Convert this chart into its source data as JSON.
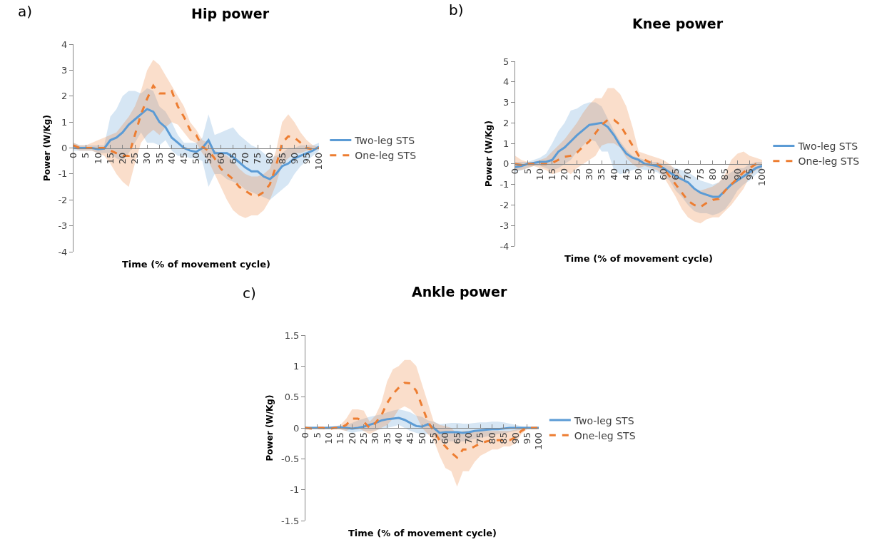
{
  "chart_data": [
    {
      "type": "line",
      "title": "Hip power",
      "xlabel": "Time (% of movement cycle)",
      "ylabel": "Power (W/Kg)",
      "annotations": [
        "a)"
      ],
      "grid": false,
      "legend": "right",
      "xlim": [
        0,
        100
      ],
      "xticks": [
        0,
        5,
        10,
        15,
        20,
        25,
        30,
        35,
        40,
        45,
        50,
        55,
        60,
        65,
        70,
        75,
        80,
        85,
        90,
        95,
        100
      ],
      "ylim": [
        -4,
        4
      ],
      "yticks": [
        -4,
        -3,
        -2,
        -1,
        0,
        1,
        2,
        3,
        4
      ],
      "x": [
        0,
        2.5,
        5,
        7.5,
        10,
        12.5,
        15,
        17.5,
        20,
        22.5,
        25,
        27.5,
        30,
        32.5,
        35,
        37.5,
        40,
        42.5,
        45,
        47.5,
        50,
        52.5,
        55,
        57.5,
        60,
        62.5,
        65,
        67.5,
        70,
        72.5,
        75,
        77.5,
        80,
        82.5,
        85,
        87.5,
        90,
        92.5,
        95,
        97.5,
        100
      ],
      "series": [
        {
          "name": "Two-leg STS",
          "color": "#5b9bd5",
          "line_style": "solid",
          "values": [
            0.05,
            0,
            0,
            0,
            -0.05,
            -0.02,
            0.3,
            0.4,
            0.6,
            0.9,
            1.1,
            1.3,
            1.5,
            1.4,
            1.0,
            0.8,
            0.4,
            0.2,
            0,
            -0.1,
            -0.15,
            0,
            0.3,
            -0.2,
            -0.2,
            -0.2,
            -0.35,
            -0.55,
            -0.75,
            -0.9,
            -0.9,
            -1.1,
            -1.2,
            -1.0,
            -0.7,
            -0.6,
            -0.4,
            -0.3,
            -0.2,
            -0.1,
            0.05
          ],
          "upper": [
            0.2,
            0.1,
            0.1,
            0.1,
            0.1,
            0.1,
            1.2,
            1.5,
            2.0,
            2.2,
            2.2,
            2.1,
            2.3,
            2.2,
            1.6,
            1.4,
            1.0,
            0.5,
            0.2,
            0.2,
            0.2,
            0.4,
            1.3,
            0.5,
            0.6,
            0.7,
            0.8,
            0.5,
            0.3,
            0.1,
            0,
            -0.2,
            -0.4,
            -0.3,
            -0.2,
            0,
            0,
            0.1,
            0.1,
            0.1,
            0.2
          ],
          "lower": [
            -0.1,
            -0.1,
            -0.1,
            -0.1,
            -0.2,
            -0.2,
            -0.2,
            -0.4,
            -0.5,
            -0.2,
            0.2,
            0.6,
            0.2,
            0.2,
            0.1,
            0.3,
            -0.1,
            -0.3,
            -0.3,
            -0.4,
            -0.4,
            -0.5,
            -1.5,
            -1.0,
            -1.0,
            -1.2,
            -1.3,
            -1.4,
            -1.6,
            -1.7,
            -1.8,
            -1.9,
            -2.0,
            -1.8,
            -1.6,
            -1.4,
            -1.0,
            -0.7,
            -0.5,
            -0.3,
            -0.1
          ]
        },
        {
          "name": "One-leg STS",
          "color": "#ed7d31",
          "line_style": "dashed",
          "values": [
            0.1,
            0,
            0,
            0,
            0,
            0,
            -0.1,
            -0.2,
            -0.3,
            -0.3,
            0.5,
            1.3,
            1.9,
            2.4,
            2.1,
            2.1,
            2.2,
            1.6,
            1.2,
            0.7,
            0.5,
            0.05,
            -0.1,
            -0.4,
            -0.8,
            -1.0,
            -1.2,
            -1.5,
            -1.65,
            -1.8,
            -1.85,
            -1.7,
            -1.4,
            -0.7,
            0.2,
            0.45,
            0.4,
            0.2,
            0,
            -0.05,
            0
          ],
          "upper": [
            0.2,
            0.1,
            0.1,
            0.2,
            0.3,
            0.4,
            0.5,
            0.6,
            0.9,
            1.2,
            1.6,
            2.2,
            3.0,
            3.4,
            3.2,
            2.8,
            2.4,
            2.0,
            1.6,
            1.0,
            0.7,
            0.3,
            0.2,
            -0.1,
            -0.2,
            -0.3,
            -0.5,
            -0.8,
            -1.0,
            -1.1,
            -1.1,
            -1.0,
            -0.8,
            -0.1,
            1.0,
            1.3,
            1.0,
            0.6,
            0.3,
            0.1,
            0.05
          ],
          "lower": [
            0,
            -0.1,
            -0.1,
            -0.1,
            -0.2,
            -0.3,
            -0.6,
            -1.0,
            -1.3,
            -1.5,
            -0.6,
            0.2,
            0.5,
            0.7,
            0.5,
            0.8,
            1.0,
            0.9,
            0.6,
            0.3,
            0.2,
            -0.2,
            -0.5,
            -1.0,
            -1.5,
            -2.0,
            -2.4,
            -2.6,
            -2.7,
            -2.6,
            -2.6,
            -2.4,
            -2.0,
            -1.4,
            -0.6,
            -0.4,
            -0.2,
            -0.2,
            -0.1,
            -0.1,
            -0.05
          ]
        }
      ]
    },
    {
      "type": "line",
      "title": "Knee power",
      "xlabel": "Time (% of movement cycle)",
      "ylabel": "Power (W/Kg)",
      "annotations": [
        "b)"
      ],
      "grid": false,
      "legend": "right",
      "xlim": [
        0,
        100
      ],
      "xticks": [
        0,
        5,
        10,
        15,
        20,
        25,
        30,
        35,
        40,
        45,
        50,
        55,
        60,
        65,
        70,
        75,
        80,
        85,
        90,
        95,
        100
      ],
      "ylim": [
        -4,
        5
      ],
      "yticks": [
        -4,
        -3,
        -2,
        -1,
        0,
        1,
        2,
        3,
        4,
        5
      ],
      "x": [
        0,
        2.5,
        5,
        7.5,
        10,
        12.5,
        15,
        17.5,
        20,
        22.5,
        25,
        27.5,
        30,
        32.5,
        35,
        37.5,
        40,
        42.5,
        45,
        47.5,
        50,
        52.5,
        55,
        57.5,
        60,
        62.5,
        65,
        67.5,
        70,
        72.5,
        75,
        77.5,
        80,
        82.5,
        85,
        87.5,
        90,
        92.5,
        95,
        97.5,
        100
      ],
      "series": [
        {
          "name": "Two-leg STS",
          "color": "#5b9bd5",
          "line_style": "solid",
          "values": [
            -0.15,
            -0.1,
            0,
            0.05,
            0.1,
            0.1,
            0.2,
            0.6,
            0.8,
            1.1,
            1.4,
            1.65,
            1.9,
            1.95,
            2.0,
            1.8,
            1.4,
            0.9,
            0.5,
            0.3,
            0.2,
            0,
            -0.05,
            -0.1,
            -0.2,
            -0.4,
            -0.6,
            -0.75,
            -0.9,
            -1.2,
            -1.4,
            -1.5,
            -1.6,
            -1.6,
            -1.3,
            -1.0,
            -0.8,
            -0.6,
            -0.4,
            -0.2,
            -0.1
          ],
          "upper": [
            0.1,
            0.1,
            0.1,
            0.2,
            0.3,
            0.5,
            1.0,
            1.6,
            2.0,
            2.6,
            2.7,
            2.9,
            3.0,
            3.0,
            2.8,
            2.2,
            1.6,
            1.1,
            0.7,
            0.4,
            0.3,
            0.2,
            0.1,
            0.1,
            0,
            -0.1,
            -0.2,
            -0.3,
            -0.4,
            -0.6,
            -0.8,
            -0.9,
            -1.0,
            -0.9,
            -0.6,
            -0.4,
            -0.2,
            -0.2,
            0,
            0.1,
            0.1
          ],
          "lower": [
            -0.4,
            -0.3,
            -0.2,
            -0.1,
            -0.1,
            -0.2,
            -0.3,
            -0.2,
            0,
            0.2,
            0.6,
            0.9,
            1.2,
            1.1,
            0.6,
            0.6,
            -0.3,
            -0.5,
            -0.4,
            -0.3,
            -0.2,
            -0.3,
            -0.3,
            -0.4,
            -0.6,
            -0.8,
            -1.3,
            -1.6,
            -2.0,
            -2.3,
            -2.4,
            -2.4,
            -2.5,
            -2.4,
            -2.2,
            -1.8,
            -1.3,
            -1.0,
            -0.8,
            -0.5,
            -0.3
          ]
        },
        {
          "name": "One-leg STS",
          "color": "#ed7d31",
          "line_style": "dashed",
          "values": [
            0,
            -0.05,
            0,
            0,
            0,
            0,
            0.05,
            0.2,
            0.35,
            0.4,
            0.55,
            0.85,
            1.1,
            1.5,
            1.9,
            2.15,
            2.15,
            1.9,
            1.4,
            0.9,
            0.4,
            0.2,
            0.05,
            0,
            -0.2,
            -0.6,
            -1.0,
            -1.4,
            -1.8,
            -2.0,
            -2.1,
            -1.9,
            -1.75,
            -1.7,
            -1.3,
            -1.0,
            -0.7,
            -0.4,
            -0.2,
            0,
            0
          ],
          "upper": [
            0.4,
            0.2,
            0.1,
            0.1,
            0.2,
            0.3,
            0.6,
            0.9,
            1.2,
            1.6,
            2.0,
            2.5,
            2.9,
            3.2,
            3.2,
            3.7,
            3.7,
            3.4,
            2.8,
            1.8,
            0.6,
            0.5,
            0.4,
            0.3,
            0.2,
            0,
            -0.3,
            -0.6,
            -1.0,
            -1.2,
            -1.3,
            -1.2,
            -1.1,
            -0.9,
            -0.5,
            0.2,
            0.5,
            0.6,
            0.4,
            0.3,
            0.2
          ],
          "lower": [
            -0.3,
            -0.3,
            -0.2,
            -0.1,
            -0.2,
            -0.3,
            -0.5,
            -0.4,
            -0.3,
            -0.5,
            -0.2,
            0,
            0.2,
            0.4,
            0.9,
            1.0,
            1.0,
            0.8,
            0.3,
            0,
            -0.2,
            -0.1,
            -0.2,
            -0.3,
            -0.6,
            -1.1,
            -1.6,
            -2.2,
            -2.6,
            -2.8,
            -2.9,
            -2.7,
            -2.6,
            -2.6,
            -2.3,
            -2.0,
            -1.6,
            -1.2,
            -0.6,
            -0.3,
            -0.2
          ]
        }
      ]
    },
    {
      "type": "line",
      "title": "Ankle power",
      "xlabel": "Time (% of movement cycle)",
      "ylabel": "Power (W/Kg)",
      "annotations": [
        "c)"
      ],
      "grid": false,
      "legend": "right",
      "xlim": [
        0,
        100
      ],
      "xticks": [
        0,
        5,
        10,
        15,
        20,
        25,
        30,
        35,
        40,
        45,
        50,
        55,
        60,
        65,
        70,
        75,
        80,
        85,
        90,
        95,
        100
      ],
      "ylim": [
        -1.5,
        1.5
      ],
      "yticks": [
        -1.5,
        -1,
        -0.5,
        0,
        0.5,
        1,
        1.5
      ],
      "x": [
        0,
        2.5,
        5,
        7.5,
        10,
        12.5,
        15,
        17.5,
        20,
        22.5,
        25,
        27.5,
        30,
        32.5,
        35,
        37.5,
        40,
        42.5,
        45,
        47.5,
        50,
        52.5,
        55,
        57.5,
        60,
        62.5,
        65,
        67.5,
        70,
        72.5,
        75,
        77.5,
        80,
        82.5,
        85,
        87.5,
        90,
        92.5,
        95,
        97.5,
        100
      ],
      "series": [
        {
          "name": "Two-leg STS",
          "color": "#5b9bd5",
          "line_style": "solid",
          "values": [
            0,
            0,
            0,
            0,
            0,
            0.01,
            0.01,
            0,
            -0.01,
            0,
            0.02,
            0.05,
            0.08,
            0.12,
            0.14,
            0.15,
            0.16,
            0.13,
            0.08,
            0.03,
            0.02,
            0.06,
            0,
            -0.08,
            -0.07,
            -0.07,
            -0.07,
            -0.08,
            -0.07,
            -0.05,
            -0.04,
            -0.03,
            -0.02,
            -0.02,
            -0.01,
            0,
            0,
            0,
            0,
            0,
            0
          ],
          "upper": [
            0.01,
            0.01,
            0.01,
            0.01,
            0.02,
            0.02,
            0.03,
            0.05,
            0.08,
            0.12,
            0.15,
            0.18,
            0.2,
            0.22,
            0.25,
            0.28,
            0.3,
            0.28,
            0.25,
            0.2,
            0.18,
            0.12,
            0.1,
            0.06,
            0.07,
            0.08,
            0.08,
            0.07,
            0.07,
            0.08,
            0.09,
            0.09,
            0.1,
            0.1,
            0.09,
            0.07,
            0.05,
            0.03,
            0.02,
            0.01,
            0.01
          ],
          "lower": [
            -0.01,
            -0.01,
            -0.01,
            -0.01,
            -0.02,
            -0.02,
            -0.02,
            -0.05,
            -0.08,
            -0.06,
            -0.05,
            -0.05,
            -0.04,
            -0.02,
            0,
            0.02,
            0.05,
            0,
            -0.05,
            -0.08,
            -0.1,
            -0.1,
            -0.12,
            -0.2,
            -0.22,
            -0.22,
            -0.22,
            -0.22,
            -0.2,
            -0.18,
            -0.16,
            -0.14,
            -0.12,
            -0.1,
            -0.09,
            -0.07,
            -0.05,
            -0.03,
            -0.02,
            -0.01,
            -0.01
          ]
        },
        {
          "name": "One-leg STS",
          "color": "#ed7d31",
          "line_style": "dashed",
          "values": [
            0,
            -0.01,
            0,
            0,
            -0.02,
            0,
            0,
            0.05,
            0.15,
            0.15,
            0.1,
            0,
            0.08,
            0.2,
            0.4,
            0.55,
            0.65,
            0.73,
            0.72,
            0.6,
            0.35,
            0.1,
            -0.05,
            -0.2,
            -0.3,
            -0.4,
            -0.48,
            -0.35,
            -0.35,
            -0.3,
            -0.25,
            -0.22,
            -0.2,
            -0.2,
            -0.2,
            -0.2,
            -0.15,
            -0.05,
            0,
            0,
            0
          ],
          "upper": [
            0.02,
            0.02,
            0.02,
            0.02,
            0.02,
            0.02,
            0.05,
            0.15,
            0.3,
            0.3,
            0.28,
            0.1,
            0.2,
            0.4,
            0.75,
            0.95,
            1.0,
            1.1,
            1.1,
            1.0,
            0.7,
            0.4,
            0.1,
            0.05,
            0.03,
            0,
            -0.1,
            -0.05,
            -0.05,
            -0.05,
            -0.05,
            -0.05,
            -0.05,
            -0.05,
            -0.05,
            -0.05,
            -0.03,
            0,
            0.02,
            0.02,
            0.02
          ],
          "lower": [
            -0.02,
            -0.02,
            -0.02,
            -0.02,
            -0.02,
            -0.02,
            -0.03,
            -0.05,
            0,
            0,
            -0.05,
            -0.1,
            -0.05,
            0,
            0.05,
            0.15,
            0.3,
            0.35,
            0.3,
            0.2,
            0,
            -0.1,
            -0.2,
            -0.45,
            -0.65,
            -0.7,
            -0.95,
            -0.7,
            -0.7,
            -0.55,
            -0.45,
            -0.4,
            -0.35,
            -0.35,
            -0.3,
            -0.3,
            -0.25,
            -0.1,
            -0.02,
            -0.02,
            -0.02
          ]
        }
      ]
    }
  ]
}
